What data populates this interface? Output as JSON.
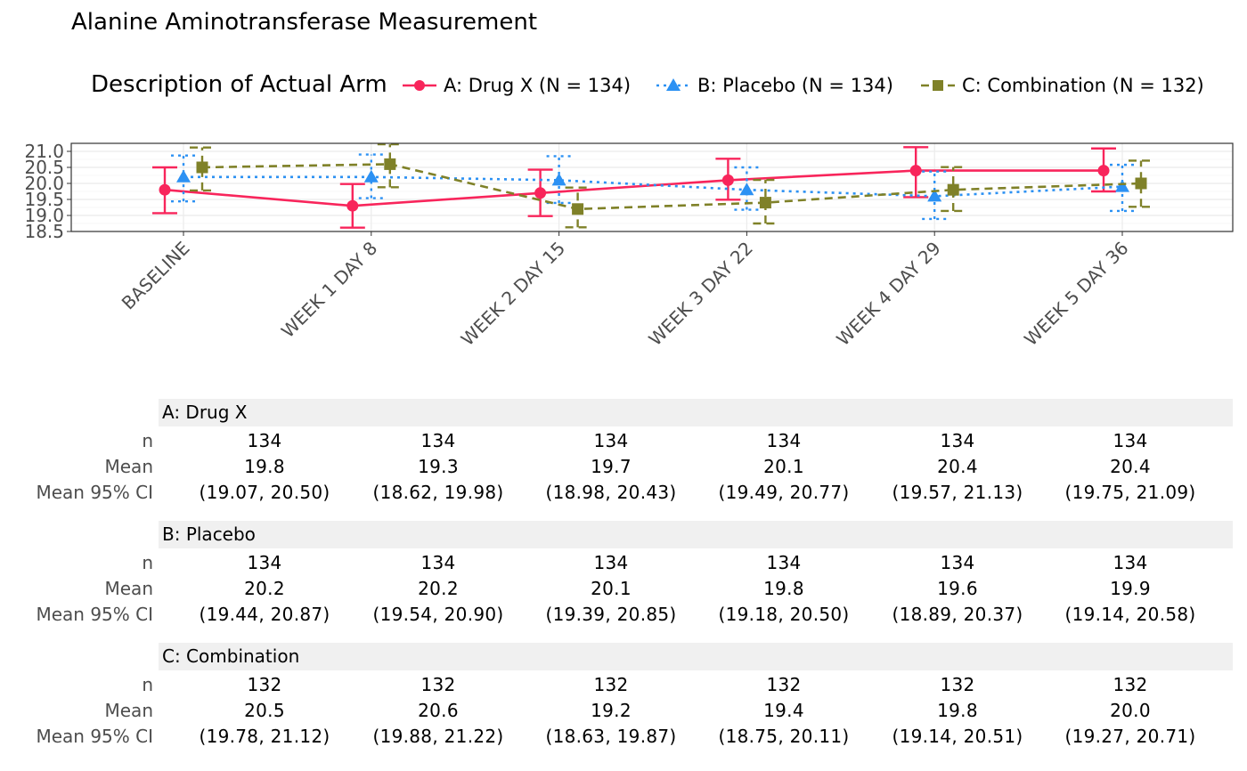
{
  "chart_data": {
    "type": "line",
    "title": "Alanine Aminotransferase Measurement",
    "legend_title": "Description of Actual Arm",
    "legend_position": "top",
    "xlabel": "",
    "ylabel": "",
    "categories": [
      "BASELINE",
      "WEEK 1 DAY 8",
      "WEEK 2 DAY 15",
      "WEEK 3 DAY 22",
      "WEEK 4 DAY 29",
      "WEEK 5 DAY 36"
    ],
    "ylim": [
      18.5,
      21.25
    ],
    "yticks": [
      "18.5",
      "19.0",
      "19.5",
      "20.0",
      "20.5",
      "21.0"
    ],
    "grid": true,
    "series": [
      {
        "name": "A: Drug X (N = 134)",
        "color": "#f8255b",
        "marker": "circle",
        "linestyle": "solid",
        "values": [
          19.8,
          19.3,
          19.7,
          20.1,
          20.4,
          20.4
        ],
        "ci_low": [
          19.07,
          18.62,
          18.98,
          19.49,
          19.57,
          19.75
        ],
        "ci_high": [
          20.5,
          19.98,
          20.43,
          20.77,
          21.13,
          21.09
        ]
      },
      {
        "name": "B: Placebo (N = 134)",
        "color": "#2c91f3",
        "marker": "triangle",
        "linestyle": "dotted",
        "values": [
          20.2,
          20.2,
          20.1,
          19.8,
          19.6,
          19.9
        ],
        "ci_low": [
          19.44,
          19.54,
          19.39,
          19.18,
          18.89,
          19.14
        ],
        "ci_high": [
          20.87,
          20.9,
          20.85,
          20.5,
          20.37,
          20.58
        ]
      },
      {
        "name": "C: Combination (N = 132)",
        "color": "#7f8128",
        "marker": "square",
        "linestyle": "dashed",
        "values": [
          20.5,
          20.6,
          19.2,
          19.4,
          19.8,
          20.0
        ],
        "ci_low": [
          19.78,
          19.88,
          18.63,
          18.75,
          19.14,
          19.27
        ],
        "ci_high": [
          21.12,
          21.22,
          19.87,
          20.11,
          20.51,
          20.71
        ]
      }
    ]
  },
  "table": {
    "row_labels": [
      "n",
      "Mean",
      "Mean 95% CI"
    ],
    "groups": [
      {
        "name": "A: Drug X",
        "n": [
          "134",
          "134",
          "134",
          "134",
          "134",
          "134"
        ],
        "mean": [
          "19.8",
          "19.3",
          "19.7",
          "20.1",
          "20.4",
          "20.4"
        ],
        "ci": [
          "(19.07, 20.50)",
          "(18.62, 19.98)",
          "(18.98, 20.43)",
          "(19.49, 20.77)",
          "(19.57, 21.13)",
          "(19.75, 21.09)"
        ]
      },
      {
        "name": "B: Placebo",
        "n": [
          "134",
          "134",
          "134",
          "134",
          "134",
          "134"
        ],
        "mean": [
          "20.2",
          "20.2",
          "20.1",
          "19.8",
          "19.6",
          "19.9"
        ],
        "ci": [
          "(19.44, 20.87)",
          "(19.54, 20.90)",
          "(19.39, 20.85)",
          "(19.18, 20.50)",
          "(18.89, 20.37)",
          "(19.14, 20.58)"
        ]
      },
      {
        "name": "C: Combination",
        "n": [
          "132",
          "132",
          "132",
          "132",
          "132",
          "132"
        ],
        "mean": [
          "20.5",
          "20.6",
          "19.2",
          "19.4",
          "19.8",
          "20.0"
        ],
        "ci": [
          "(19.78, 21.12)",
          "(19.88, 21.22)",
          "(18.63, 19.87)",
          "(18.75, 20.11)",
          "(19.14, 20.51)",
          "(19.27, 20.71)"
        ]
      }
    ]
  }
}
